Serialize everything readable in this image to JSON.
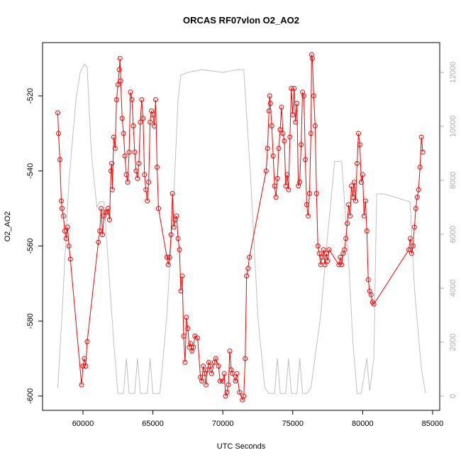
{
  "chart_data": {
    "type": "line",
    "title": "ORCAS RF07vlon O2_AO2",
    "xlabel": "UTC Seconds",
    "ylabel": "O2_AO2",
    "xlim": [
      57110,
      85510
    ],
    "xticks": [
      60000,
      65000,
      70000,
      75000,
      80000,
      85000
    ],
    "ylim": [
      -603.8,
      -505.8
    ],
    "yticks": [
      -600,
      -580,
      -560,
      -540,
      -520
    ],
    "y2lim": [
      -526,
      13105
    ],
    "y2ticks": [
      0,
      2000,
      4000,
      6000,
      8000,
      10000,
      12000
    ],
    "series": [
      {
        "color": "#ff0000",
        "markers": true,
        "axis": "y",
        "x": [
          58200,
          58250,
          58350,
          58450,
          58500,
          58600,
          58700,
          58800,
          58900,
          59000,
          59100,
          59900,
          60000,
          60100,
          60200,
          60300,
          61100,
          61200,
          61300,
          61400,
          61500,
          61600,
          61700,
          61800,
          61900,
          62000,
          62050,
          62100,
          62200,
          62300,
          62400,
          62500,
          62600,
          62650,
          62700,
          62800,
          62900,
          63000,
          63100,
          63200,
          63300,
          63400,
          63500,
          63600,
          63700,
          63800,
          63900,
          64000,
          64100,
          64200,
          64300,
          64400,
          64500,
          64600,
          64700,
          64800,
          64900,
          65000,
          65100,
          65200,
          65300,
          65400,
          66000,
          66100,
          66200,
          66300,
          66400,
          66500,
          66600,
          66700,
          66800,
          66900,
          67000,
          67100,
          67200,
          67300,
          67400,
          67500,
          67600,
          67700,
          67800,
          67900,
          68000,
          68200,
          68400,
          68500,
          68600,
          68700,
          68800,
          68900,
          69000,
          69100,
          69200,
          69400,
          69500,
          69700,
          69800,
          70000,
          70100,
          70200,
          70300,
          70400,
          70500,
          70600,
          70700,
          70900,
          71000,
          71200,
          71400,
          71500,
          71600,
          71700,
          71800,
          71900,
          73100,
          73200,
          73300,
          73350,
          73400,
          73500,
          73600,
          73700,
          73800,
          73900,
          74000,
          74100,
          74200,
          74300,
          74400,
          74500,
          74600,
          74700,
          74800,
          74900,
          75000,
          75100,
          75200,
          75300,
          75400,
          75500,
          75600,
          75700,
          75800,
          75900,
          76000,
          76100,
          76200,
          76300,
          76350,
          76400,
          76500,
          76600,
          76700,
          76800,
          76900,
          77000,
          77100,
          77200,
          77300,
          77400,
          77500,
          77600,
          78300,
          78400,
          78500,
          78600,
          78700,
          78800,
          78900,
          79000,
          79100,
          79200,
          79300,
          79400,
          79500,
          79600,
          79700,
          79800,
          79900,
          80000,
          80100,
          80200,
          80300,
          80400,
          80500,
          80600,
          80700,
          80800,
          83300,
          83400,
          83500,
          83600,
          83700,
          83800,
          83900,
          84000,
          84100,
          84200,
          84300
        ],
        "values": [
          -524.5,
          -530,
          -537,
          -548,
          -550,
          -552,
          -556,
          -558,
          -555,
          -560,
          -563.5,
          -597,
          -592,
          -590,
          -592,
          -585.5,
          -559,
          -556,
          -550,
          -557,
          -552,
          -551,
          -551,
          -550,
          -553,
          -540,
          -538,
          -545,
          -531,
          -534,
          -521,
          -517,
          -513,
          -510,
          -516,
          -526,
          -530,
          -536,
          -541,
          -543,
          -535,
          -519,
          -521,
          -528,
          -535,
          -540,
          -542,
          -538,
          -527,
          -521,
          -526,
          -541,
          -545,
          -548,
          -543,
          -527,
          -524,
          -525,
          -528,
          -521,
          -539,
          -550,
          -563,
          -565,
          -563,
          -557,
          -546,
          -555,
          -553,
          -552,
          -558,
          -561,
          -572,
          -568,
          -584,
          -591,
          -579,
          -582,
          -587,
          -586,
          -588,
          -587,
          -584,
          -584.5,
          -595,
          -596,
          -592,
          -594,
          -597,
          -593,
          -591,
          -592,
          -594,
          -591,
          -590,
          -592,
          -596,
          -596,
          -594,
          -600,
          -599,
          -597,
          -588,
          -593,
          -594,
          -596,
          -594,
          -599,
          -601,
          -600,
          -590,
          -568,
          -566,
          -563,
          -540,
          -534,
          -524,
          -520,
          -522,
          -528,
          -536,
          -544,
          -547,
          -542,
          -534,
          -529,
          -523,
          -530,
          -532,
          -544,
          -541,
          -545,
          -531,
          -518,
          -525,
          -518,
          -527,
          -522,
          -544,
          -543,
          -533,
          -519,
          -520,
          -537,
          -549,
          -552,
          -546,
          -530,
          -509,
          -510,
          -520,
          -528,
          -546,
          -560,
          -562,
          -565,
          -563,
          -561,
          -565,
          -562,
          -564,
          -561,
          -565,
          -563,
          -565,
          -562,
          -561,
          -558,
          -554,
          -549,
          -552,
          -544,
          -547,
          -543,
          -548,
          -538,
          -530,
          -533,
          -543,
          -541,
          -552,
          -548,
          -556,
          -569,
          -572,
          -573,
          -575,
          -575.5,
          -561,
          -558,
          -562,
          -560,
          -555,
          -550,
          -547,
          -545,
          -539,
          -531,
          -535
        ]
      },
      {
        "color": "#c0c0c0",
        "markers": false,
        "axis": "y2",
        "x": [
          58200,
          58500,
          59000,
          59500,
          59800,
          60100,
          60300,
          60600,
          61000,
          61200,
          61500,
          61800,
          62200,
          62500,
          62900,
          63100,
          63300,
          63700,
          63900,
          64100,
          64600,
          64800,
          65000,
          65500,
          66000,
          66500,
          66800,
          67000,
          67500,
          68500,
          70000,
          71000,
          71500,
          72000,
          72500,
          73000,
          73300,
          73700,
          73900,
          74100,
          74500,
          74700,
          74900,
          75300,
          75500,
          75700,
          76000,
          76300,
          77000,
          77500,
          78000,
          78500,
          79000,
          79300,
          79600,
          79900,
          80300,
          80500,
          80800,
          81000,
          81500,
          83400,
          83700,
          84200,
          84500
        ],
        "values": [
          300,
          3000,
          8000,
          11000,
          12000,
          12300,
          12200,
          9000,
          7000,
          7200,
          7200,
          5000,
          2000,
          100,
          100,
          1400,
          100,
          100,
          1400,
          100,
          100,
          1400,
          100,
          100,
          3000,
          7500,
          11000,
          11900,
          12000,
          12100,
          12000,
          12100,
          12100,
          8000,
          3000,
          300,
          100,
          100,
          1400,
          100,
          100,
          1400,
          100,
          100,
          1400,
          100,
          100,
          300,
          3000,
          6000,
          8700,
          8700,
          5000,
          2000,
          100,
          100,
          1400,
          200,
          1400,
          7500,
          7500,
          7200,
          4000,
          1000,
          100
        ]
      }
    ]
  }
}
